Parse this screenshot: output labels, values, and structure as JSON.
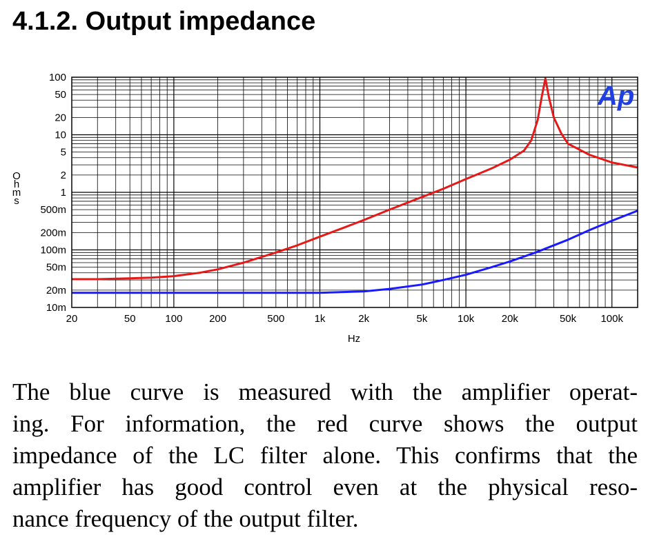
{
  "heading": "4.1.2. Output impedance",
  "logo_text": "Ap",
  "paragraph": {
    "lines": [
      "The blue curve is measured with the amplifier operat-",
      "ing. For information, the red curve shows the output",
      "impedance of the LC filter alone. This confirms that the",
      "amplifier has good control even at the physical reso-",
      "nance frequency of the output filter."
    ]
  },
  "colors": {
    "blue_curve": "#1a1aff",
    "red_curve": "#e61919",
    "grid": "#000000",
    "logo": "#1f3fe0"
  },
  "chart_data": {
    "type": "line",
    "title": "",
    "xlabel": "Hz",
    "ylabel": "Ohms",
    "x_scale": "log",
    "y_scale": "log",
    "xlim": [
      20,
      150000
    ],
    "ylim": [
      0.01,
      100
    ],
    "grid": true,
    "x_ticks": [
      {
        "v": 20,
        "label": "20"
      },
      {
        "v": 50,
        "label": "50"
      },
      {
        "v": 100,
        "label": "100"
      },
      {
        "v": 200,
        "label": "200"
      },
      {
        "v": 500,
        "label": "500"
      },
      {
        "v": 1000,
        "label": "1k"
      },
      {
        "v": 2000,
        "label": "2k"
      },
      {
        "v": 5000,
        "label": "5k"
      },
      {
        "v": 10000,
        "label": "10k"
      },
      {
        "v": 20000,
        "label": "20k"
      },
      {
        "v": 50000,
        "label": "50k"
      },
      {
        "v": 100000,
        "label": "100k"
      }
    ],
    "y_ticks": [
      {
        "v": 0.01,
        "label": "10m"
      },
      {
        "v": 0.02,
        "label": "20m"
      },
      {
        "v": 0.05,
        "label": "50m"
      },
      {
        "v": 0.1,
        "label": "100m"
      },
      {
        "v": 0.2,
        "label": "200m"
      },
      {
        "v": 0.5,
        "label": "500m"
      },
      {
        "v": 1,
        "label": "1"
      },
      {
        "v": 2,
        "label": "2"
      },
      {
        "v": 5,
        "label": "5"
      },
      {
        "v": 10,
        "label": "10"
      },
      {
        "v": 20,
        "label": "20"
      },
      {
        "v": 50,
        "label": "50"
      },
      {
        "v": 100,
        "label": "100"
      }
    ],
    "series": [
      {
        "color": "red",
        "x": [
          20,
          30,
          50,
          70,
          100,
          150,
          200,
          300,
          500,
          700,
          1000,
          1500,
          2000,
          3000,
          5000,
          7000,
          10000,
          15000,
          20000,
          25000,
          28000,
          31000,
          33000,
          35000,
          37000,
          40000,
          45000,
          50000,
          70000,
          100000,
          150000
        ],
        "y": [
          0.031,
          0.031,
          0.032,
          0.033,
          0.035,
          0.04,
          0.046,
          0.06,
          0.09,
          0.12,
          0.17,
          0.25,
          0.33,
          0.5,
          0.83,
          1.15,
          1.7,
          2.6,
          3.7,
          5.3,
          8,
          18,
          45,
          95,
          45,
          20,
          10.5,
          7,
          4.5,
          3.3,
          2.7
        ]
      },
      {
        "color": "blue",
        "x": [
          20,
          50,
          100,
          200,
          500,
          1000,
          2000,
          3000,
          5000,
          7000,
          10000,
          15000,
          20000,
          30000,
          50000,
          70000,
          100000,
          150000
        ],
        "y": [
          0.018,
          0.018,
          0.018,
          0.018,
          0.018,
          0.018,
          0.019,
          0.021,
          0.025,
          0.03,
          0.037,
          0.05,
          0.063,
          0.09,
          0.15,
          0.22,
          0.32,
          0.48
        ]
      }
    ]
  }
}
